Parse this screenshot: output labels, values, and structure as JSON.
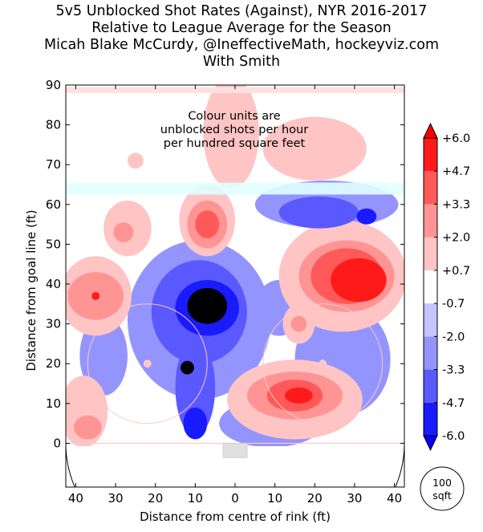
{
  "chart_data": {
    "type": "heatmap",
    "title": [
      "5v5 Unblocked Shot Rates (Against), NYR 2016-2017",
      "Relative to League Average for the Season",
      "Micah Blake McCurdy, @IneffectiveMath, hockeyviz.com",
      "With Smith"
    ],
    "xlabel": "Distance from centre of rink (ft)",
    "ylabel": "Distance from goal line (ft)",
    "xlim": [
      -42.5,
      42.5
    ],
    "ylim": [
      -11,
      90
    ],
    "x_ticks": [
      -40,
      -30,
      -20,
      -10,
      0,
      10,
      20,
      30,
      40
    ],
    "x_tick_labels": [
      "40",
      "30",
      "20",
      "10",
      "0",
      "10",
      "20",
      "30",
      "40"
    ],
    "y_ticks": [
      0,
      10,
      20,
      30,
      40,
      50,
      60,
      70,
      80,
      90
    ],
    "y_tick_labels": [
      "0",
      "10",
      "20",
      "30",
      "40",
      "50",
      "60",
      "70",
      "80",
      "90"
    ],
    "annotation": [
      "Colour units are",
      "unblocked shots per hour",
      "per hundred square feet"
    ],
    "colorbar": {
      "levels": [
        -6.0,
        -4.7,
        -3.3,
        -2.0,
        -0.7,
        0.7,
        2.0,
        3.3,
        4.7,
        6.0
      ],
      "tick_labels": [
        "-6.0",
        "-4.7",
        "-3.3",
        "-2.0",
        "-0.7",
        "+0.7",
        "+2.0",
        "+3.3",
        "+4.7",
        "+6.0"
      ],
      "colors": [
        "#1a1aff",
        "#5959ff",
        "#9494ff",
        "#c4c4ff",
        "#ffffff",
        "#ffc4c4",
        "#ff9494",
        "#ff5959",
        "#ff1a1a"
      ],
      "extend_low": "#0000ff",
      "extend_high": "#ff0000",
      "size_legend": [
        "100",
        "sqft"
      ]
    },
    "blobs": [
      {
        "x": -9,
        "y": 31,
        "rx": 18,
        "ry": 20,
        "level": -2
      },
      {
        "x": 9,
        "y": 5,
        "rx": 13,
        "ry": 6,
        "level": -2
      },
      {
        "x": 11,
        "y": 34,
        "rx": 6,
        "ry": 7,
        "level": -2
      },
      {
        "x": 27,
        "y": 21,
        "rx": 12,
        "ry": 14,
        "level": -2
      },
      {
        "x": 23,
        "y": 60,
        "rx": 18,
        "ry": 6,
        "level": -2
      },
      {
        "x": -33,
        "y": 22,
        "rx": 6,
        "ry": 10,
        "level": -2
      },
      {
        "x": -9,
        "y": 33,
        "rx": 12,
        "ry": 13,
        "level": -3
      },
      {
        "x": -10,
        "y": 14,
        "rx": 5,
        "ry": 12,
        "level": -3
      },
      {
        "x": 21,
        "y": 58,
        "rx": 10,
        "ry": 4,
        "level": -3
      },
      {
        "x": -7,
        "y": 34,
        "rx": 8,
        "ry": 7,
        "level": -4
      },
      {
        "x": -10,
        "y": 5,
        "rx": 3,
        "ry": 4,
        "level": -4
      },
      {
        "x": 33,
        "y": 57,
        "rx": 2.5,
        "ry": 2,
        "level": -4
      },
      {
        "x": -7,
        "y": 34.5,
        "rx": 5,
        "ry": 4.5,
        "level": -5
      },
      {
        "x": -12,
        "y": 19,
        "rx": 1.7,
        "ry": 1.7,
        "level": -5
      },
      {
        "x": 15,
        "y": 11,
        "rx": 17,
        "ry": 10,
        "level": 1
      },
      {
        "x": 27,
        "y": 42,
        "rx": 16,
        "ry": 14,
        "level": 1
      },
      {
        "x": -35,
        "y": 37,
        "rx": 9,
        "ry": 10,
        "level": 1
      },
      {
        "x": -38,
        "y": 8,
        "rx": 6,
        "ry": 9,
        "level": 1
      },
      {
        "x": -7,
        "y": 56,
        "rx": 7,
        "ry": 9,
        "level": 1
      },
      {
        "x": -27,
        "y": 54,
        "rx": 6,
        "ry": 7,
        "level": 1
      },
      {
        "x": 20,
        "y": 74,
        "rx": 13,
        "ry": 8,
        "level": 1
      },
      {
        "x": -1,
        "y": 78,
        "rx": 7,
        "ry": 14,
        "level": 1
      },
      {
        "x": 16,
        "y": 30,
        "rx": 4,
        "ry": 5,
        "level": 1
      },
      {
        "x": -25,
        "y": 71,
        "rx": 2,
        "ry": 2,
        "level": 1
      },
      {
        "x": 15,
        "y": 12,
        "rx": 12,
        "ry": 6,
        "level": 2
      },
      {
        "x": 28,
        "y": 42,
        "rx": 12,
        "ry": 9,
        "level": 2
      },
      {
        "x": -35,
        "y": 37,
        "rx": 7,
        "ry": 6,
        "level": 2
      },
      {
        "x": -7,
        "y": 55,
        "rx": 5,
        "ry": 6,
        "level": 2
      },
      {
        "x": -37,
        "y": 4,
        "rx": 3.5,
        "ry": 3,
        "level": 2
      },
      {
        "x": -28,
        "y": 53,
        "rx": 2.5,
        "ry": 2.5,
        "level": 2
      },
      {
        "x": 16,
        "y": 30,
        "rx": 2,
        "ry": 2,
        "level": 2
      },
      {
        "x": 15,
        "y": 12,
        "rx": 7,
        "ry": 4,
        "level": 3
      },
      {
        "x": 28,
        "y": 42,
        "rx": 9,
        "ry": 7,
        "level": 3
      },
      {
        "x": -7,
        "y": 55,
        "rx": 3,
        "ry": 3.5,
        "level": 3
      },
      {
        "x": 31,
        "y": 41,
        "rx": 7,
        "ry": 5.5,
        "level": 4
      },
      {
        "x": 16,
        "y": 12,
        "rx": 3.5,
        "ry": 2,
        "level": 4
      },
      {
        "x": -35,
        "y": 37,
        "rx": 1,
        "ry": 1,
        "level": 4
      }
    ]
  }
}
